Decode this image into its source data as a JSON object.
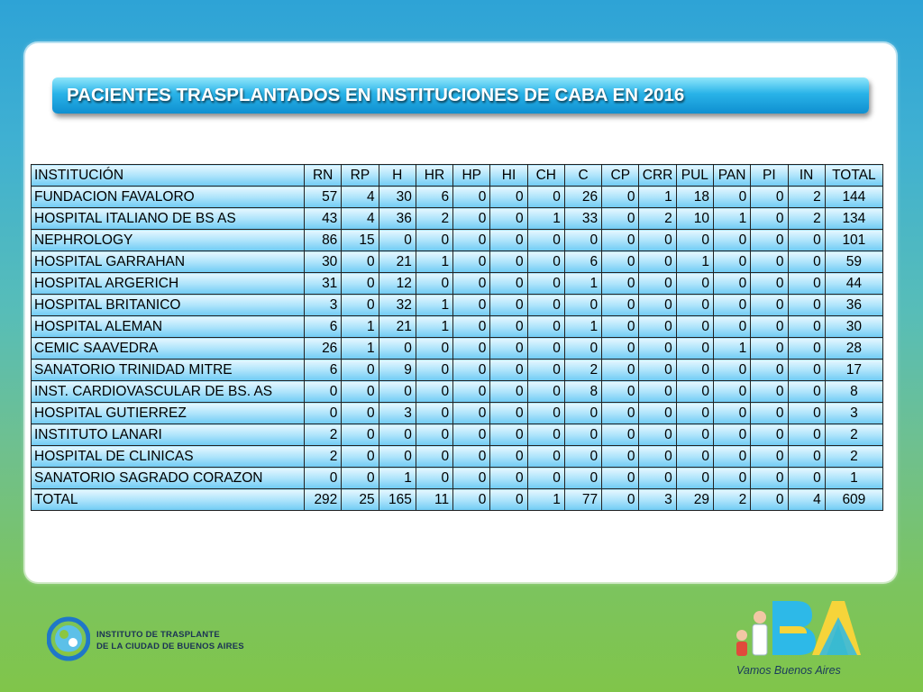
{
  "title": "PACIENTES TRASPLANTADOS EN INSTITUCIONES DE CABA EN  2016",
  "table": {
    "headers": [
      "INSTITUCIÓN",
      "RN",
      "RP",
      "H",
      "HR",
      "HP",
      "HI",
      "CH",
      "C",
      "CP",
      "CRR",
      "PUL",
      "PAN",
      "PI",
      "IN",
      "TOTAL"
    ],
    "rows": [
      [
        "FUNDACION FAVALORO",
        "57",
        "4",
        "30",
        "6",
        "0",
        "0",
        "0",
        "26",
        "0",
        "1",
        "18",
        "0",
        "0",
        "2",
        "144"
      ],
      [
        "HOSPITAL ITALIANO DE BS AS",
        "43",
        "4",
        "36",
        "2",
        "0",
        "0",
        "1",
        "33",
        "0",
        "2",
        "10",
        "1",
        "0",
        "2",
        "134"
      ],
      [
        "NEPHROLOGY",
        "86",
        "15",
        "0",
        "0",
        "0",
        "0",
        "0",
        "0",
        "0",
        "0",
        "0",
        "0",
        "0",
        "0",
        "101"
      ],
      [
        "HOSPITAL GARRAHAN",
        "30",
        "0",
        "21",
        "1",
        "0",
        "0",
        "0",
        "6",
        "0",
        "0",
        "1",
        "0",
        "0",
        "0",
        "59"
      ],
      [
        "HOSPITAL  ARGERICH",
        "31",
        "0",
        "12",
        "0",
        "0",
        "0",
        "0",
        "1",
        "0",
        "0",
        "0",
        "0",
        "0",
        "0",
        "44"
      ],
      [
        "HOSPITAL BRITANICO",
        "3",
        "0",
        "32",
        "1",
        "0",
        "0",
        "0",
        "0",
        "0",
        "0",
        "0",
        "0",
        "0",
        "0",
        "36"
      ],
      [
        "HOSPITAL ALEMAN",
        "6",
        "1",
        "21",
        "1",
        "0",
        "0",
        "0",
        "1",
        "0",
        "0",
        "0",
        "0",
        "0",
        "0",
        "30"
      ],
      [
        "CEMIC  SAAVEDRA",
        "26",
        "1",
        "0",
        "0",
        "0",
        "0",
        "0",
        "0",
        "0",
        "0",
        "0",
        "1",
        "0",
        "0",
        "28"
      ],
      [
        "SANATORIO TRINIDAD MITRE",
        "6",
        "0",
        "9",
        "0",
        "0",
        "0",
        "0",
        "2",
        "0",
        "0",
        "0",
        "0",
        "0",
        "0",
        "17"
      ],
      [
        "INST. CARDIOVASCULAR DE BS. AS",
        "0",
        "0",
        "0",
        "0",
        "0",
        "0",
        "0",
        "8",
        "0",
        "0",
        "0",
        "0",
        "0",
        "0",
        "8"
      ],
      [
        "HOSPITAL GUTIERREZ",
        "0",
        "0",
        "3",
        "0",
        "0",
        "0",
        "0",
        "0",
        "0",
        "0",
        "0",
        "0",
        "0",
        "0",
        "3"
      ],
      [
        "INSTITUTO LANARI",
        "2",
        "0",
        "0",
        "0",
        "0",
        "0",
        "0",
        "0",
        "0",
        "0",
        "0",
        "0",
        "0",
        "0",
        "2"
      ],
      [
        "HOSPITAL DE CLINICAS",
        "2",
        "0",
        "0",
        "0",
        "0",
        "0",
        "0",
        "0",
        "0",
        "0",
        "0",
        "0",
        "0",
        "0",
        "2"
      ],
      [
        "SANATORIO SAGRADO CORAZON",
        "0",
        "0",
        "1",
        "0",
        "0",
        "0",
        "0",
        "0",
        "0",
        "0",
        "0",
        "0",
        "0",
        "0",
        "1"
      ],
      [
        "TOTAL",
        "292",
        "25",
        "165",
        "11",
        "0",
        "0",
        "1",
        "77",
        "0",
        "3",
        "29",
        "2",
        "0",
        "4",
        "609"
      ]
    ]
  },
  "footer": {
    "left_logo": {
      "line1": "INSTITUTO DE TRASPLANTE",
      "line2": "DE LA CIUDAD DE BUENOS AIRES",
      "icon": "ciudad-trasplante-logo"
    },
    "right_logo": {
      "mark": "BA",
      "slogan": "Vamos Buenos Aires",
      "icon": "ba-city-logo"
    }
  },
  "colors": {
    "title_bar": "#1ea7e1",
    "cell_fill": "#aee4fb",
    "bg_top": "#2ea3d6",
    "bg_bottom": "#80c54a"
  }
}
